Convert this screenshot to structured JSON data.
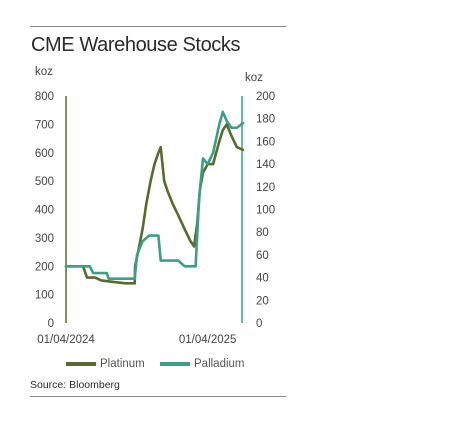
{
  "chart_data": {
    "type": "line",
    "title": "CME Warehouse Stocks",
    "source": "Source: Bloomberg",
    "y_left": {
      "label": "koz",
      "range": [
        0,
        800
      ],
      "ticks": [
        0,
        100,
        200,
        300,
        400,
        500,
        600,
        700,
        800
      ]
    },
    "y_right": {
      "label": "koz",
      "range": [
        0,
        200
      ],
      "ticks": [
        0,
        20,
        40,
        60,
        80,
        100,
        120,
        140,
        160,
        180,
        200
      ]
    },
    "x_axis": {
      "ticks": [
        "01/04/2024",
        "01/04/2025"
      ]
    },
    "grid": false,
    "legend": "bottom",
    "series": [
      {
        "name": "Platinum",
        "axis": "left",
        "color": "#556b2f",
        "points": [
          [
            "01/04/2024",
            200
          ],
          [
            "15/05/2024",
            200
          ],
          [
            "25/05/2024",
            160
          ],
          [
            "15/06/2024",
            160
          ],
          [
            "01/07/2024",
            150
          ],
          [
            "01/08/2024",
            145
          ],
          [
            "01/09/2024",
            140
          ],
          [
            "25/09/2024",
            140
          ],
          [
            "26/09/2024",
            200
          ],
          [
            "05/10/2024",
            260
          ],
          [
            "15/10/2024",
            330
          ],
          [
            "25/10/2024",
            420
          ],
          [
            "05/11/2024",
            500
          ],
          [
            "15/11/2024",
            560
          ],
          [
            "25/11/2024",
            600
          ],
          [
            "01/12/2024",
            620
          ],
          [
            "10/12/2024",
            500
          ],
          [
            "20/12/2024",
            460
          ],
          [
            "01/01/2025",
            420
          ],
          [
            "15/01/2025",
            380
          ],
          [
            "01/02/2025",
            330
          ],
          [
            "15/02/2025",
            290
          ],
          [
            "25/02/2025",
            270
          ],
          [
            "05/03/2025",
            350
          ],
          [
            "12/03/2025",
            470
          ],
          [
            "20/03/2025",
            530
          ],
          [
            "01/04/2025",
            560
          ],
          [
            "15/04/2025",
            560
          ],
          [
            "01/05/2025",
            640
          ],
          [
            "10/05/2025",
            680
          ],
          [
            "20/05/2025",
            700
          ],
          [
            "01/06/2025",
            660
          ],
          [
            "15/06/2025",
            620
          ],
          [
            "01/07/2025",
            610
          ]
        ]
      },
      {
        "name": "Palladium",
        "axis": "right",
        "color": "#3d9e84",
        "points": [
          [
            "01/04/2024",
            50
          ],
          [
            "01/06/2024",
            50
          ],
          [
            "10/06/2024",
            44
          ],
          [
            "15/07/2024",
            44
          ],
          [
            "20/07/2024",
            39
          ],
          [
            "25/09/2024",
            39
          ],
          [
            "01/10/2024",
            60
          ],
          [
            "15/10/2024",
            72
          ],
          [
            "01/11/2024",
            77
          ],
          [
            "25/11/2024",
            77
          ],
          [
            "01/12/2024",
            55
          ],
          [
            "15/01/2025",
            55
          ],
          [
            "01/02/2025",
            50
          ],
          [
            "01/03/2025",
            50
          ],
          [
            "10/03/2025",
            110
          ],
          [
            "20/03/2025",
            145
          ],
          [
            "01/04/2025",
            140
          ],
          [
            "15/04/2025",
            150
          ],
          [
            "01/05/2025",
            175
          ],
          [
            "10/05/2025",
            186
          ],
          [
            "20/05/2025",
            178
          ],
          [
            "01/06/2025",
            172
          ],
          [
            "15/06/2025",
            172
          ],
          [
            "01/07/2025",
            176
          ]
        ]
      }
    ]
  }
}
